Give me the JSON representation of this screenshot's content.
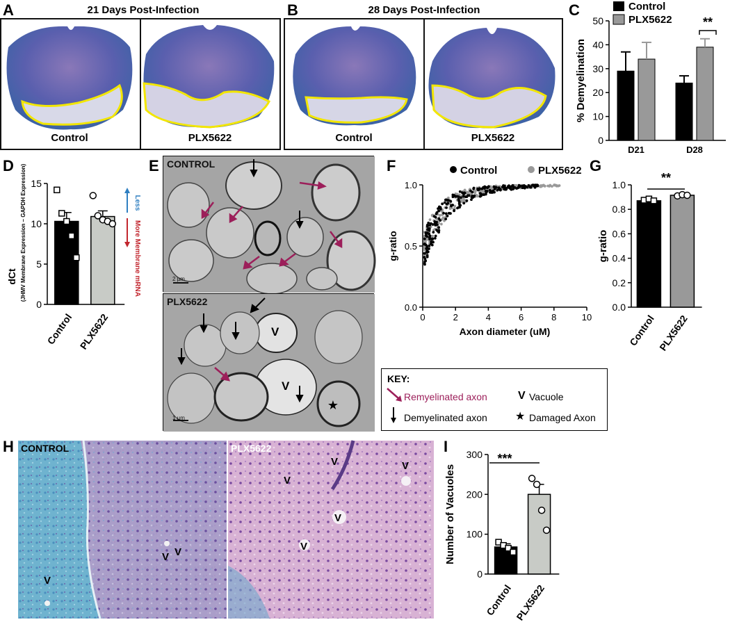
{
  "panels": {
    "A": {
      "letter": "A",
      "title": "21 Days Post-Infection",
      "left_caption": "Control",
      "right_caption": "PLX5622"
    },
    "B": {
      "letter": "B",
      "title": "28 Days Post-Infection",
      "left_caption": "Control",
      "right_caption": "PLX5622"
    },
    "C": {
      "letter": "C",
      "legend_control": "Control",
      "legend_plx": "PLX5622",
      "significance": "**"
    },
    "D": {
      "letter": "D",
      "ylabel": "dCt",
      "ylabel_sub": "(JHMV Membrane Expression – GAPDH Expression)",
      "less_label": "Less",
      "more_label": "More Membrane mRNA"
    },
    "E": {
      "letter": "E",
      "top_label": "CONTROL",
      "bottom_label": "PLX5622",
      "scale_top": "2 µm",
      "scale_bottom": "1 µm",
      "vacuole_mark": "V"
    },
    "F": {
      "letter": "F",
      "legend_control": "Control",
      "legend_plx": "PLX5622"
    },
    "G": {
      "letter": "G",
      "significance": "**"
    },
    "H": {
      "letter": "H",
      "left_label": "CONTROL",
      "right_label": "PLX5622",
      "vacuole_mark": "V"
    },
    "I": {
      "letter": "I",
      "significance": "***"
    }
  },
  "key": {
    "title": "KEY:",
    "remyelinated": "Remyelinated axon",
    "demyelinated": "Demyelinated axon",
    "vacuole_symbol": "V",
    "vacuole": "Vacuole",
    "damaged_symbol": "★",
    "damaged": "Damaged Axon"
  },
  "colors": {
    "control": "#000000",
    "plx": "#999999",
    "plx_bar_light": "#c8cbc6",
    "remyelinated_arrow": "#9c1f5a",
    "less_blue": "#2f7fc1",
    "more_red": "#c2262e",
    "outline_yellow": "#f2e600"
  },
  "chart_data": [
    {
      "panel": "C",
      "type": "bar",
      "categories": [
        "D21",
        "D28"
      ],
      "series": [
        {
          "name": "Control",
          "values": [
            29,
            24
          ],
          "errors": [
            8,
            3
          ]
        },
        {
          "name": "PLX5622",
          "values": [
            34,
            39
          ],
          "errors": [
            7,
            3.5
          ]
        }
      ],
      "ylabel": "% Demyelination",
      "ylim": [
        0,
        50
      ],
      "yticks": [
        "0",
        "10",
        "20",
        "30",
        "40",
        "50"
      ]
    },
    {
      "panel": "D",
      "type": "bar",
      "categories": [
        "Control",
        "PLX5622"
      ],
      "values": [
        10.3,
        10.9
      ],
      "errors": [
        1.1,
        0.7
      ],
      "points": [
        [
          14.2,
          11.3,
          10.3,
          8.5,
          5.8
        ],
        [
          13.5,
          11.0,
          10.5,
          10.3,
          10.0
        ]
      ],
      "ylabel": "dCt",
      "ylim": [
        0,
        15
      ],
      "yticks": [
        "0",
        "5",
        "10",
        "15"
      ]
    },
    {
      "panel": "F",
      "type": "scatter",
      "xlabel": "Axon diameter (uM)",
      "ylabel": "g-ratio",
      "xlim": [
        0,
        10
      ],
      "ylim": [
        0,
        1
      ],
      "xticks": [
        "0",
        "2",
        "4",
        "6",
        "8",
        "10"
      ],
      "yticks": [
        "0.0",
        "0.5",
        "1.0"
      ],
      "series": [
        {
          "name": "Control"
        },
        {
          "name": "PLX5622"
        }
      ]
    },
    {
      "panel": "G",
      "type": "bar",
      "categories": [
        "Control",
        "PLX5622"
      ],
      "values": [
        0.87,
        0.915
      ],
      "points": [
        [
          0.875,
          0.885,
          0.87
        ],
        [
          0.91,
          0.92,
          0.915
        ]
      ],
      "ylabel": "g-ratio",
      "ylim": [
        0,
        1
      ],
      "yticks": [
        "0.0",
        "0.2",
        "0.4",
        "0.6",
        "0.8",
        "1.0"
      ]
    },
    {
      "panel": "I",
      "type": "bar",
      "categories": [
        "Control",
        "PLX5622"
      ],
      "values": [
        68,
        200
      ],
      "errors": [
        8,
        25
      ],
      "points": [
        [
          80,
          72,
          65,
          55
        ],
        [
          240,
          225,
          160,
          110
        ]
      ],
      "ylabel": "Number of Vacuoles",
      "ylim": [
        0,
        300
      ],
      "yticks": [
        "0",
        "100",
        "200",
        "300"
      ]
    }
  ]
}
